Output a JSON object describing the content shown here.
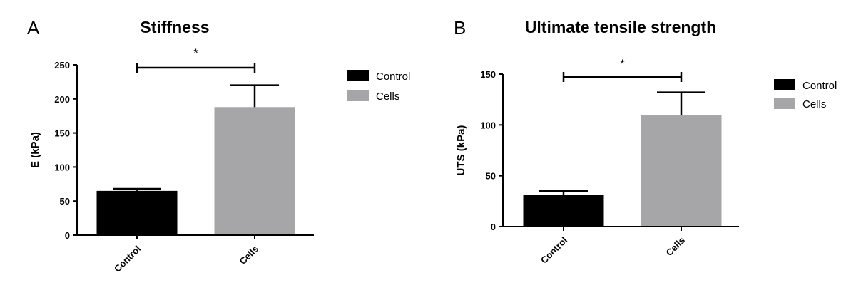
{
  "chart_data": [
    {
      "type": "bar",
      "panel_label": "A",
      "title": "Stiffness",
      "xlabel": "",
      "ylabel": "E (kPa)",
      "categories": [
        "Control",
        "Cells"
      ],
      "values": [
        65,
        188
      ],
      "errors": [
        3,
        32
      ],
      "colors": [
        "#000000",
        "#a6a6a8"
      ],
      "ylim": [
        0,
        250
      ],
      "yticks": [
        0,
        50,
        100,
        150,
        200,
        250
      ],
      "significance": {
        "label": "*",
        "between": [
          0,
          1
        ]
      },
      "legend": {
        "placement": "right",
        "entries": [
          {
            "label": "Control",
            "color": "#000000"
          },
          {
            "label": "Cells",
            "color": "#a6a6a8"
          }
        ]
      },
      "grid": false
    },
    {
      "type": "bar",
      "panel_label": "B",
      "title": "Ultimate tensile strength",
      "xlabel": "",
      "ylabel": "UTS (kPa)",
      "categories": [
        "Control",
        "Cells"
      ],
      "values": [
        31,
        110
      ],
      "errors": [
        4,
        22
      ],
      "colors": [
        "#000000",
        "#a6a6a8"
      ],
      "ylim": [
        0,
        150
      ],
      "yticks": [
        0,
        50,
        100,
        150
      ],
      "significance": {
        "label": "*",
        "between": [
          0,
          1
        ]
      },
      "legend": {
        "placement": "right",
        "entries": [
          {
            "label": "Control",
            "color": "#000000"
          },
          {
            "label": "Cells",
            "color": "#a6a6a8"
          }
        ]
      },
      "grid": false
    }
  ]
}
